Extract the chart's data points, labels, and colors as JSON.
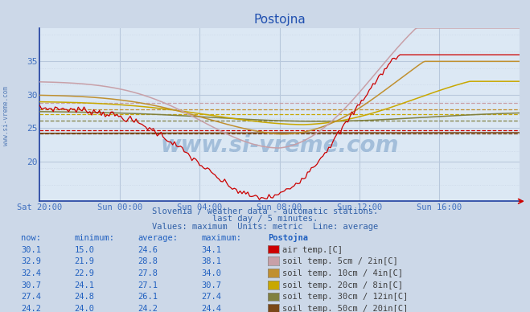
{
  "title": "Postojna",
  "subtitle1": "Slovenia / weather data - automatic stations.",
  "subtitle2": "last day / 5 minutes.",
  "subtitle3": "Values: maximum  Units: metric  Line: average",
  "bg_color": "#ccd8e8",
  "plot_bg_color": "#dce8f4",
  "title_color": "#2050b0",
  "tick_color": "#4070c0",
  "grid_color": "#b8c8dc",
  "grid_minor_color": "#ccd8e8",
  "x_labels": [
    "Sat 20:00",
    "Sun 00:00",
    "Sun 04:00",
    "Sun 08:00",
    "Sun 12:00",
    "Sun 16:00"
  ],
  "y_ticks": [
    20,
    25,
    30,
    35
  ],
  "ylim_low": 14,
  "ylim_high": 40,
  "series_colors": {
    "air_temp": "#cc0000",
    "soil_5cm": "#c8a0a8",
    "soil_10cm": "#c09030",
    "soil_20cm": "#c8a800",
    "soil_30cm": "#808040",
    "soil_50cm": "#7a4818"
  },
  "avg_values": {
    "air_temp": 24.6,
    "soil_5cm": 28.8,
    "soil_10cm": 27.8,
    "soil_20cm": 27.1,
    "soil_30cm": 26.1,
    "soil_50cm": 24.2
  },
  "table_rows": [
    [
      30.1,
      15.0,
      24.6,
      34.1,
      "#cc0000",
      "air temp.[C]"
    ],
    [
      32.9,
      21.9,
      28.8,
      38.1,
      "#c8a0a8",
      "soil temp. 5cm / 2in[C]"
    ],
    [
      32.4,
      22.9,
      27.8,
      34.0,
      "#c09030",
      "soil temp. 10cm / 4in[C]"
    ],
    [
      30.7,
      24.1,
      27.1,
      30.7,
      "#c8a800",
      "soil temp. 20cm / 8in[C]"
    ],
    [
      27.4,
      24.8,
      26.1,
      27.4,
      "#808040",
      "soil temp. 30cm / 12in[C]"
    ],
    [
      24.2,
      24.0,
      24.2,
      24.4,
      "#7a4818",
      "soil temp. 50cm / 20in[C]"
    ]
  ],
  "table_headers": [
    "now:",
    "minimum:",
    "average:",
    "maximum:",
    "Postojna"
  ]
}
